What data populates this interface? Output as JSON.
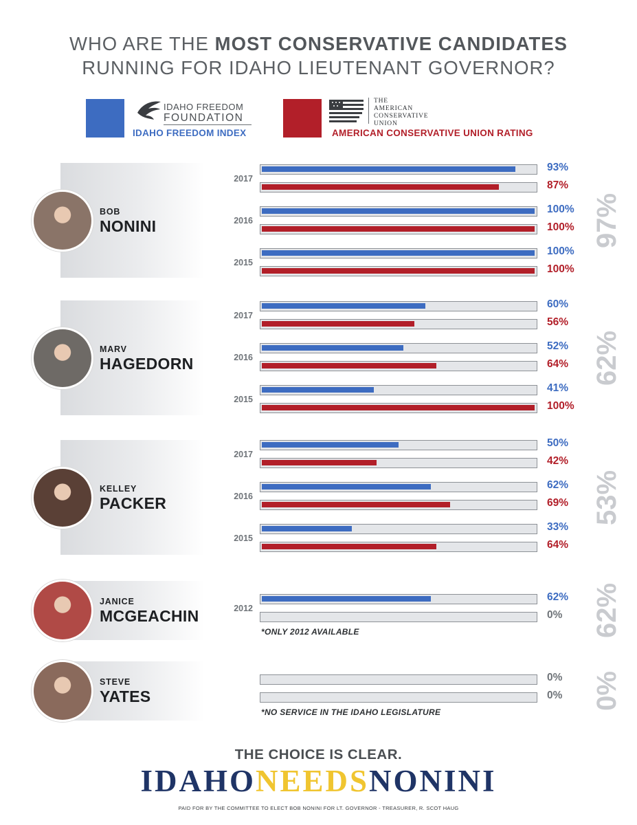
{
  "title": {
    "line1_pre": "WHO ARE THE ",
    "line1_bold": "MOST CONSERVATIVE CANDIDATES",
    "line2": "RUNNING FOR IDAHO LIEUTENANT GOVERNOR?"
  },
  "legend": {
    "iff": {
      "logo_line1": "IDAHO FREEDOM",
      "logo_line2": "FOUNDATION",
      "name": "IDAHO FREEDOM INDEX",
      "color": "#3d6cc1"
    },
    "acu": {
      "logo_lines": [
        "THE",
        "AMERICAN",
        "CONSERVATIVE",
        "UNION"
      ],
      "name": "AMERICAN CONSERVATIVE UNION RATING",
      "color": "#b21f29"
    }
  },
  "chart_data": {
    "type": "bar",
    "orientation": "horizontal",
    "xlim": [
      0,
      100
    ],
    "series_names": [
      "IDAHO FREEDOM INDEX",
      "AMERICAN CONSERVATIVE UNION RATING"
    ],
    "candidates": [
      {
        "first": "BOB",
        "last": "NONINI",
        "overall": "97%",
        "avatar_color": "#8a7468",
        "years": [
          {
            "year": "2017",
            "iff": 93,
            "acu": 87
          },
          {
            "year": "2016",
            "iff": 100,
            "acu": 100
          },
          {
            "year": "2015",
            "iff": 100,
            "acu": 100
          }
        ],
        "note": ""
      },
      {
        "first": "MARV",
        "last": "HAGEDORN",
        "overall": "62%",
        "avatar_color": "#6e6a66",
        "years": [
          {
            "year": "2017",
            "iff": 60,
            "acu": 56
          },
          {
            "year": "2016",
            "iff": 52,
            "acu": 64
          },
          {
            "year": "2015",
            "iff": 41,
            "acu": 100
          }
        ],
        "note": ""
      },
      {
        "first": "KELLEY",
        "last": "PACKER",
        "overall": "53%",
        "avatar_color": "#5a4036",
        "years": [
          {
            "year": "2017",
            "iff": 50,
            "acu": 42
          },
          {
            "year": "2016",
            "iff": 62,
            "acu": 69
          },
          {
            "year": "2015",
            "iff": 33,
            "acu": 64
          }
        ],
        "note": ""
      },
      {
        "first": "JANICE",
        "last": "MCGEACHIN",
        "overall": "62%",
        "avatar_color": "#b04a46",
        "years": [
          {
            "year": "2012",
            "iff": 62,
            "acu": 0
          }
        ],
        "note": "*ONLY 2012 AVAILABLE"
      },
      {
        "first": "STEVE",
        "last": "YATES",
        "overall": "0%",
        "avatar_color": "#8a6a5c",
        "years": [
          {
            "year": "",
            "iff": 0,
            "acu": 0
          }
        ],
        "note": "*NO SERVICE IN THE IDAHO LEGISLATURE"
      }
    ]
  },
  "footer": {
    "tagline": "THE CHOICE IS CLEAR.",
    "slogan": [
      "IDAHO",
      "NEEDS",
      "NONINI"
    ],
    "slogan_colors": [
      "#1f3466",
      "#f0c530",
      "#1f3466"
    ],
    "paid": "PAID FOR BY THE COMMITTEE TO ELECT BOB NONINI FOR LT. GOVERNOR - TREASURER, R. SCOT HAUG"
  },
  "colors": {
    "zero_text": "#6f7479",
    "track": "#e4e6e9"
  }
}
